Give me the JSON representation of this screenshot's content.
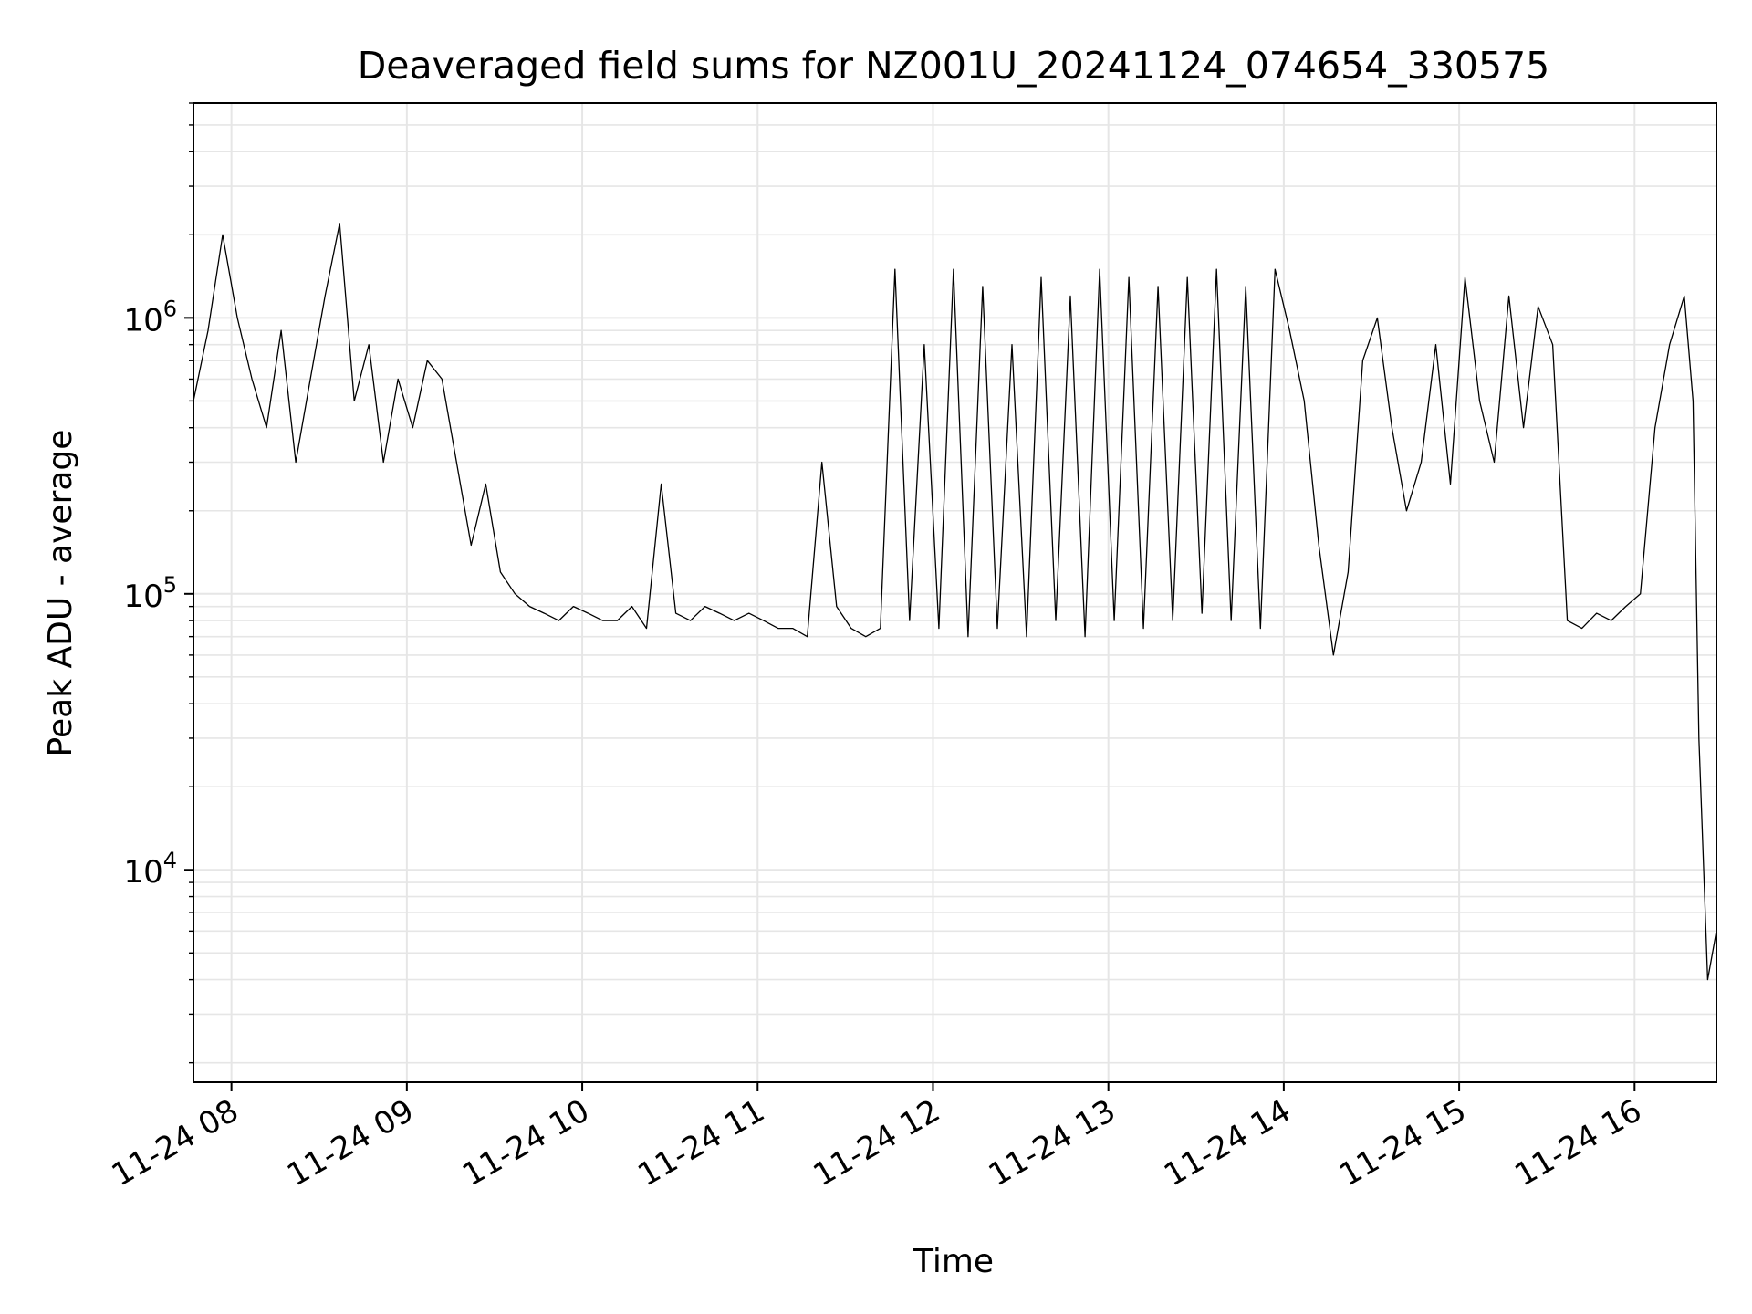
{
  "chart_data": {
    "type": "line",
    "title": "Deaveraged field sums for NZ001U_20241124_074654_330575",
    "xlabel": "Time",
    "ylabel": "Peak ADU - average",
    "y_scale": "log",
    "grid": true,
    "line_color": "#000000",
    "grid_color": "#e6e6e6",
    "xlim": [
      "2024-11-24 07:47",
      "2024-11-24 16:28"
    ],
    "ylim": [
      1700,
      6000000
    ],
    "x_ticks": [
      {
        "time": "2024-11-24 08:00",
        "label": "11-24 08"
      },
      {
        "time": "2024-11-24 09:00",
        "label": "11-24 09"
      },
      {
        "time": "2024-11-24 10:00",
        "label": "11-24 10"
      },
      {
        "time": "2024-11-24 11:00",
        "label": "11-24 11"
      },
      {
        "time": "2024-11-24 12:00",
        "label": "11-24 12"
      },
      {
        "time": "2024-11-24 13:00",
        "label": "11-24 13"
      },
      {
        "time": "2024-11-24 14:00",
        "label": "11-24 14"
      },
      {
        "time": "2024-11-24 15:00",
        "label": "11-24 15"
      },
      {
        "time": "2024-11-24 16:00",
        "label": "11-24 16"
      }
    ],
    "y_ticks": [
      {
        "value": 10000,
        "base": "10",
        "exp": "4"
      },
      {
        "value": 100000,
        "base": "10",
        "exp": "5"
      },
      {
        "value": 1000000,
        "base": "10",
        "exp": "6"
      }
    ],
    "series": [
      {
        "x": [
          "2024-11-24 07:47",
          "2024-11-24 07:52",
          "2024-11-24 07:57",
          "2024-11-24 08:02",
          "2024-11-24 08:07",
          "2024-11-24 08:12",
          "2024-11-24 08:17",
          "2024-11-24 08:22",
          "2024-11-24 08:27",
          "2024-11-24 08:32",
          "2024-11-24 08:37",
          "2024-11-24 08:42",
          "2024-11-24 08:47",
          "2024-11-24 08:52",
          "2024-11-24 08:57",
          "2024-11-24 09:02",
          "2024-11-24 09:07",
          "2024-11-24 09:12",
          "2024-11-24 09:17",
          "2024-11-24 09:22",
          "2024-11-24 09:27",
          "2024-11-24 09:32",
          "2024-11-24 09:37",
          "2024-11-24 09:42",
          "2024-11-24 09:47",
          "2024-11-24 09:52",
          "2024-11-24 09:57",
          "2024-11-24 10:02",
          "2024-11-24 10:07",
          "2024-11-24 10:12",
          "2024-11-24 10:17",
          "2024-11-24 10:22",
          "2024-11-24 10:27",
          "2024-11-24 10:32",
          "2024-11-24 10:37",
          "2024-11-24 10:42",
          "2024-11-24 10:47",
          "2024-11-24 10:52",
          "2024-11-24 10:57",
          "2024-11-24 11:02",
          "2024-11-24 11:07",
          "2024-11-24 11:12",
          "2024-11-24 11:17",
          "2024-11-24 11:22",
          "2024-11-24 11:27",
          "2024-11-24 11:32",
          "2024-11-24 11:37",
          "2024-11-24 11:42",
          "2024-11-24 11:47",
          "2024-11-24 11:52",
          "2024-11-24 11:57",
          "2024-11-24 12:02",
          "2024-11-24 12:07",
          "2024-11-24 12:12",
          "2024-11-24 12:17",
          "2024-11-24 12:22",
          "2024-11-24 12:27",
          "2024-11-24 12:32",
          "2024-11-24 12:37",
          "2024-11-24 12:42",
          "2024-11-24 12:47",
          "2024-11-24 12:52",
          "2024-11-24 12:57",
          "2024-11-24 13:02",
          "2024-11-24 13:07",
          "2024-11-24 13:12",
          "2024-11-24 13:17",
          "2024-11-24 13:22",
          "2024-11-24 13:27",
          "2024-11-24 13:32",
          "2024-11-24 13:37",
          "2024-11-24 13:42",
          "2024-11-24 13:47",
          "2024-11-24 13:52",
          "2024-11-24 13:57",
          "2024-11-24 14:02",
          "2024-11-24 14:07",
          "2024-11-24 14:12",
          "2024-11-24 14:17",
          "2024-11-24 14:22",
          "2024-11-24 14:27",
          "2024-11-24 14:32",
          "2024-11-24 14:37",
          "2024-11-24 14:42",
          "2024-11-24 14:47",
          "2024-11-24 14:52",
          "2024-11-24 14:57",
          "2024-11-24 15:02",
          "2024-11-24 15:07",
          "2024-11-24 15:12",
          "2024-11-24 15:17",
          "2024-11-24 15:22",
          "2024-11-24 15:27",
          "2024-11-24 15:32",
          "2024-11-24 15:37",
          "2024-11-24 15:42",
          "2024-11-24 15:47",
          "2024-11-24 15:52",
          "2024-11-24 15:57",
          "2024-11-24 16:02",
          "2024-11-24 16:07",
          "2024-11-24 16:12",
          "2024-11-24 16:17",
          "2024-11-24 16:20",
          "2024-11-24 16:22",
          "2024-11-24 16:25",
          "2024-11-24 16:28"
        ],
        "y": [
          500000,
          900000,
          2000000,
          1000000,
          600000,
          400000,
          900000,
          300000,
          600000,
          1200000,
          2200000,
          500000,
          800000,
          300000,
          600000,
          400000,
          700000,
          600000,
          300000,
          150000,
          250000,
          120000,
          100000,
          90000,
          85000,
          80000,
          90000,
          85000,
          80000,
          80000,
          90000,
          75000,
          250000,
          85000,
          80000,
          90000,
          85000,
          80000,
          85000,
          80000,
          75000,
          75000,
          70000,
          300000,
          90000,
          75000,
          70000,
          75000,
          1500000,
          80000,
          800000,
          75000,
          1500000,
          70000,
          1300000,
          75000,
          800000,
          70000,
          1400000,
          80000,
          1200000,
          70000,
          1500000,
          80000,
          1400000,
          75000,
          1300000,
          80000,
          1400000,
          85000,
          1500000,
          80000,
          1300000,
          75000,
          1500000,
          900000,
          500000,
          150000,
          60000,
          120000,
          700000,
          1000000,
          400000,
          200000,
          300000,
          800000,
          250000,
          1400000,
          500000,
          300000,
          1200000,
          400000,
          1100000,
          800000,
          80000,
          75000,
          85000,
          80000,
          90000,
          100000,
          400000,
          800000,
          1200000,
          500000,
          30000,
          4000,
          6000
        ]
      }
    ]
  }
}
